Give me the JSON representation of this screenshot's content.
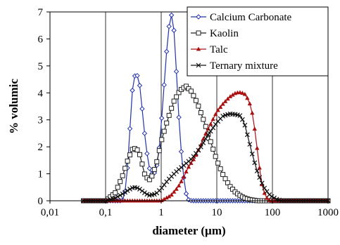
{
  "chart_data": {
    "type": "line",
    "title": "",
    "xlabel": "diameter (µm)",
    "ylabel": "% volumic",
    "x_scale": "log",
    "xlim": [
      0.01,
      1000
    ],
    "ylim": [
      0,
      7
    ],
    "x_ticks": [
      0.01,
      0.1,
      1,
      10,
      100,
      1000
    ],
    "x_tick_labels": [
      "0,01",
      "0,1",
      "1",
      "10",
      "100",
      "1000"
    ],
    "y_ticks": [
      0,
      1,
      2,
      3,
      4,
      5,
      6,
      7
    ],
    "y_tick_labels": [
      "0",
      "1",
      "2",
      "3",
      "4",
      "5",
      "6",
      "7"
    ],
    "grid": "vertical at decades",
    "legend_position": "top-right",
    "series": [
      {
        "name": "Calcium Carbonate",
        "color": "#2233aa",
        "marker": "diamond",
        "points": [
          [
            0.2,
            0
          ],
          [
            0.22,
            0.2
          ],
          [
            0.25,
            1.3
          ],
          [
            0.28,
            3.0
          ],
          [
            0.31,
            4.4
          ],
          [
            0.35,
            4.75
          ],
          [
            0.4,
            4.5
          ],
          [
            0.45,
            3.5
          ],
          [
            0.52,
            2.2
          ],
          [
            0.6,
            1.25
          ],
          [
            0.7,
            0.95
          ],
          [
            0.8,
            1.1
          ],
          [
            0.9,
            1.7
          ],
          [
            1.0,
            2.8
          ],
          [
            1.15,
            4.5
          ],
          [
            1.3,
            6.0
          ],
          [
            1.45,
            6.8
          ],
          [
            1.55,
            6.9
          ],
          [
            1.7,
            6.3
          ],
          [
            1.9,
            4.6
          ],
          [
            2.1,
            2.9
          ],
          [
            2.4,
            1.3
          ],
          [
            2.7,
            0.4
          ],
          [
            3.0,
            0.05
          ],
          [
            3.5,
            0
          ]
        ]
      },
      {
        "name": "Kaolin",
        "color": "#222222",
        "marker": "square",
        "points": [
          [
            0.1,
            0
          ],
          [
            0.15,
            0.3
          ],
          [
            0.2,
            0.9
          ],
          [
            0.25,
            1.5
          ],
          [
            0.3,
            1.9
          ],
          [
            0.35,
            1.95
          ],
          [
            0.4,
            1.8
          ],
          [
            0.45,
            1.4
          ],
          [
            0.5,
            1.0
          ],
          [
            0.6,
            0.75
          ],
          [
            0.7,
            0.95
          ],
          [
            0.85,
            1.5
          ],
          [
            1.0,
            2.2
          ],
          [
            1.3,
            3.0
          ],
          [
            1.7,
            3.7
          ],
          [
            2.2,
            4.1
          ],
          [
            2.8,
            4.25
          ],
          [
            3.5,
            4.05
          ],
          [
            4.5,
            3.6
          ],
          [
            6.0,
            2.9
          ],
          [
            8.0,
            2.1
          ],
          [
            10.0,
            1.5
          ],
          [
            13.0,
            0.95
          ],
          [
            17.0,
            0.55
          ],
          [
            22.0,
            0.3
          ],
          [
            30.0,
            0.12
          ],
          [
            40.0,
            0.04
          ],
          [
            55.0,
            0
          ]
        ]
      },
      {
        "name": "Talc",
        "color": "#aa1111",
        "marker": "triangle",
        "points": [
          [
            1.0,
            0
          ],
          [
            1.5,
            0.2
          ],
          [
            2.0,
            0.5
          ],
          [
            2.5,
            0.85
          ],
          [
            3.0,
            1.2
          ],
          [
            4.0,
            1.6
          ],
          [
            5.0,
            2.0
          ],
          [
            6.0,
            2.4
          ],
          [
            8.0,
            2.9
          ],
          [
            10.0,
            3.3
          ],
          [
            13.0,
            3.6
          ],
          [
            17.0,
            3.85
          ],
          [
            22.0,
            4.0
          ],
          [
            27.0,
            4.02
          ],
          [
            32.0,
            3.95
          ],
          [
            38.0,
            3.7
          ],
          [
            44.0,
            3.2
          ],
          [
            50.0,
            2.4
          ],
          [
            57.0,
            1.4
          ],
          [
            65.0,
            0.6
          ],
          [
            75.0,
            0.15
          ],
          [
            90.0,
            0
          ]
        ]
      },
      {
        "name": "Ternary mixture",
        "color": "#111111",
        "marker": "x",
        "points": [
          [
            0.1,
            0
          ],
          [
            0.15,
            0.1
          ],
          [
            0.2,
            0.25
          ],
          [
            0.25,
            0.38
          ],
          [
            0.3,
            0.48
          ],
          [
            0.35,
            0.5
          ],
          [
            0.4,
            0.45
          ],
          [
            0.5,
            0.3
          ],
          [
            0.6,
            0.2
          ],
          [
            0.8,
            0.25
          ],
          [
            1.0,
            0.45
          ],
          [
            1.3,
            0.75
          ],
          [
            1.8,
            1.05
          ],
          [
            2.5,
            1.3
          ],
          [
            3.5,
            1.55
          ],
          [
            5.0,
            1.95
          ],
          [
            7.0,
            2.45
          ],
          [
            10.0,
            2.9
          ],
          [
            13.0,
            3.15
          ],
          [
            17.0,
            3.22
          ],
          [
            22.0,
            3.2
          ],
          [
            27.0,
            3.15
          ],
          [
            32.0,
            2.8
          ],
          [
            38.0,
            2.2
          ],
          [
            45.0,
            1.6
          ],
          [
            55.0,
            1.0
          ],
          [
            70.0,
            0.5
          ],
          [
            90.0,
            0.2
          ],
          [
            120.0,
            0.05
          ],
          [
            150.0,
            0
          ]
        ]
      }
    ]
  }
}
